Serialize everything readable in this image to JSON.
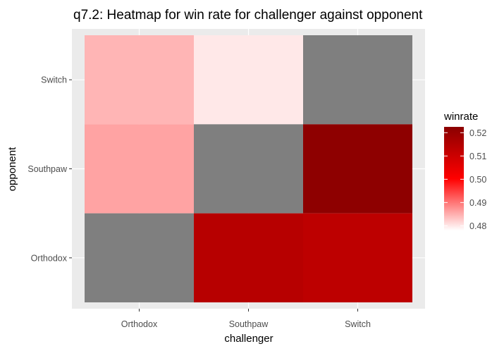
{
  "chart_data": {
    "type": "heatmap",
    "title": "q7.2: Heatmap for win rate for challenger against opponent",
    "xlabel": "challenger",
    "ylabel": "opponent",
    "x_categories": [
      "Orthodox",
      "Southpaw",
      "Switch"
    ],
    "y_categories": [
      "Orthodox",
      "Southpaw",
      "Switch"
    ],
    "cells": [
      {
        "x": "Orthodox",
        "y": "Switch",
        "value": 0.4845
      },
      {
        "x": "Southpaw",
        "y": "Switch",
        "value": 0.48
      },
      {
        "x": "Switch",
        "y": "Switch",
        "value": null
      },
      {
        "x": "Orthodox",
        "y": "Southpaw",
        "value": 0.486
      },
      {
        "x": "Southpaw",
        "y": "Southpaw",
        "value": null
      },
      {
        "x": "Switch",
        "y": "Southpaw",
        "value": 0.522
      },
      {
        "x": "Orthodox",
        "y": "Orthodox",
        "value": null
      },
      {
        "x": "Southpaw",
        "y": "Orthodox",
        "value": 0.514
      },
      {
        "x": "Switch",
        "y": "Orthodox",
        "value": 0.513
      }
    ],
    "legend": {
      "title": "winrate",
      "min": 0.478,
      "max": 0.5225,
      "ticks": [
        0.48,
        0.49,
        0.5,
        0.51,
        0.52
      ],
      "tick_labels": [
        "0.48",
        "0.49",
        "0.50",
        "0.51",
        "0.52"
      ]
    },
    "colors": {
      "low": "#ffffff",
      "mid": "#ff0000",
      "high": "#8b0000",
      "na": "#7f7f7f",
      "panel": "#ebebeb",
      "grid": "#ffffff"
    }
  }
}
